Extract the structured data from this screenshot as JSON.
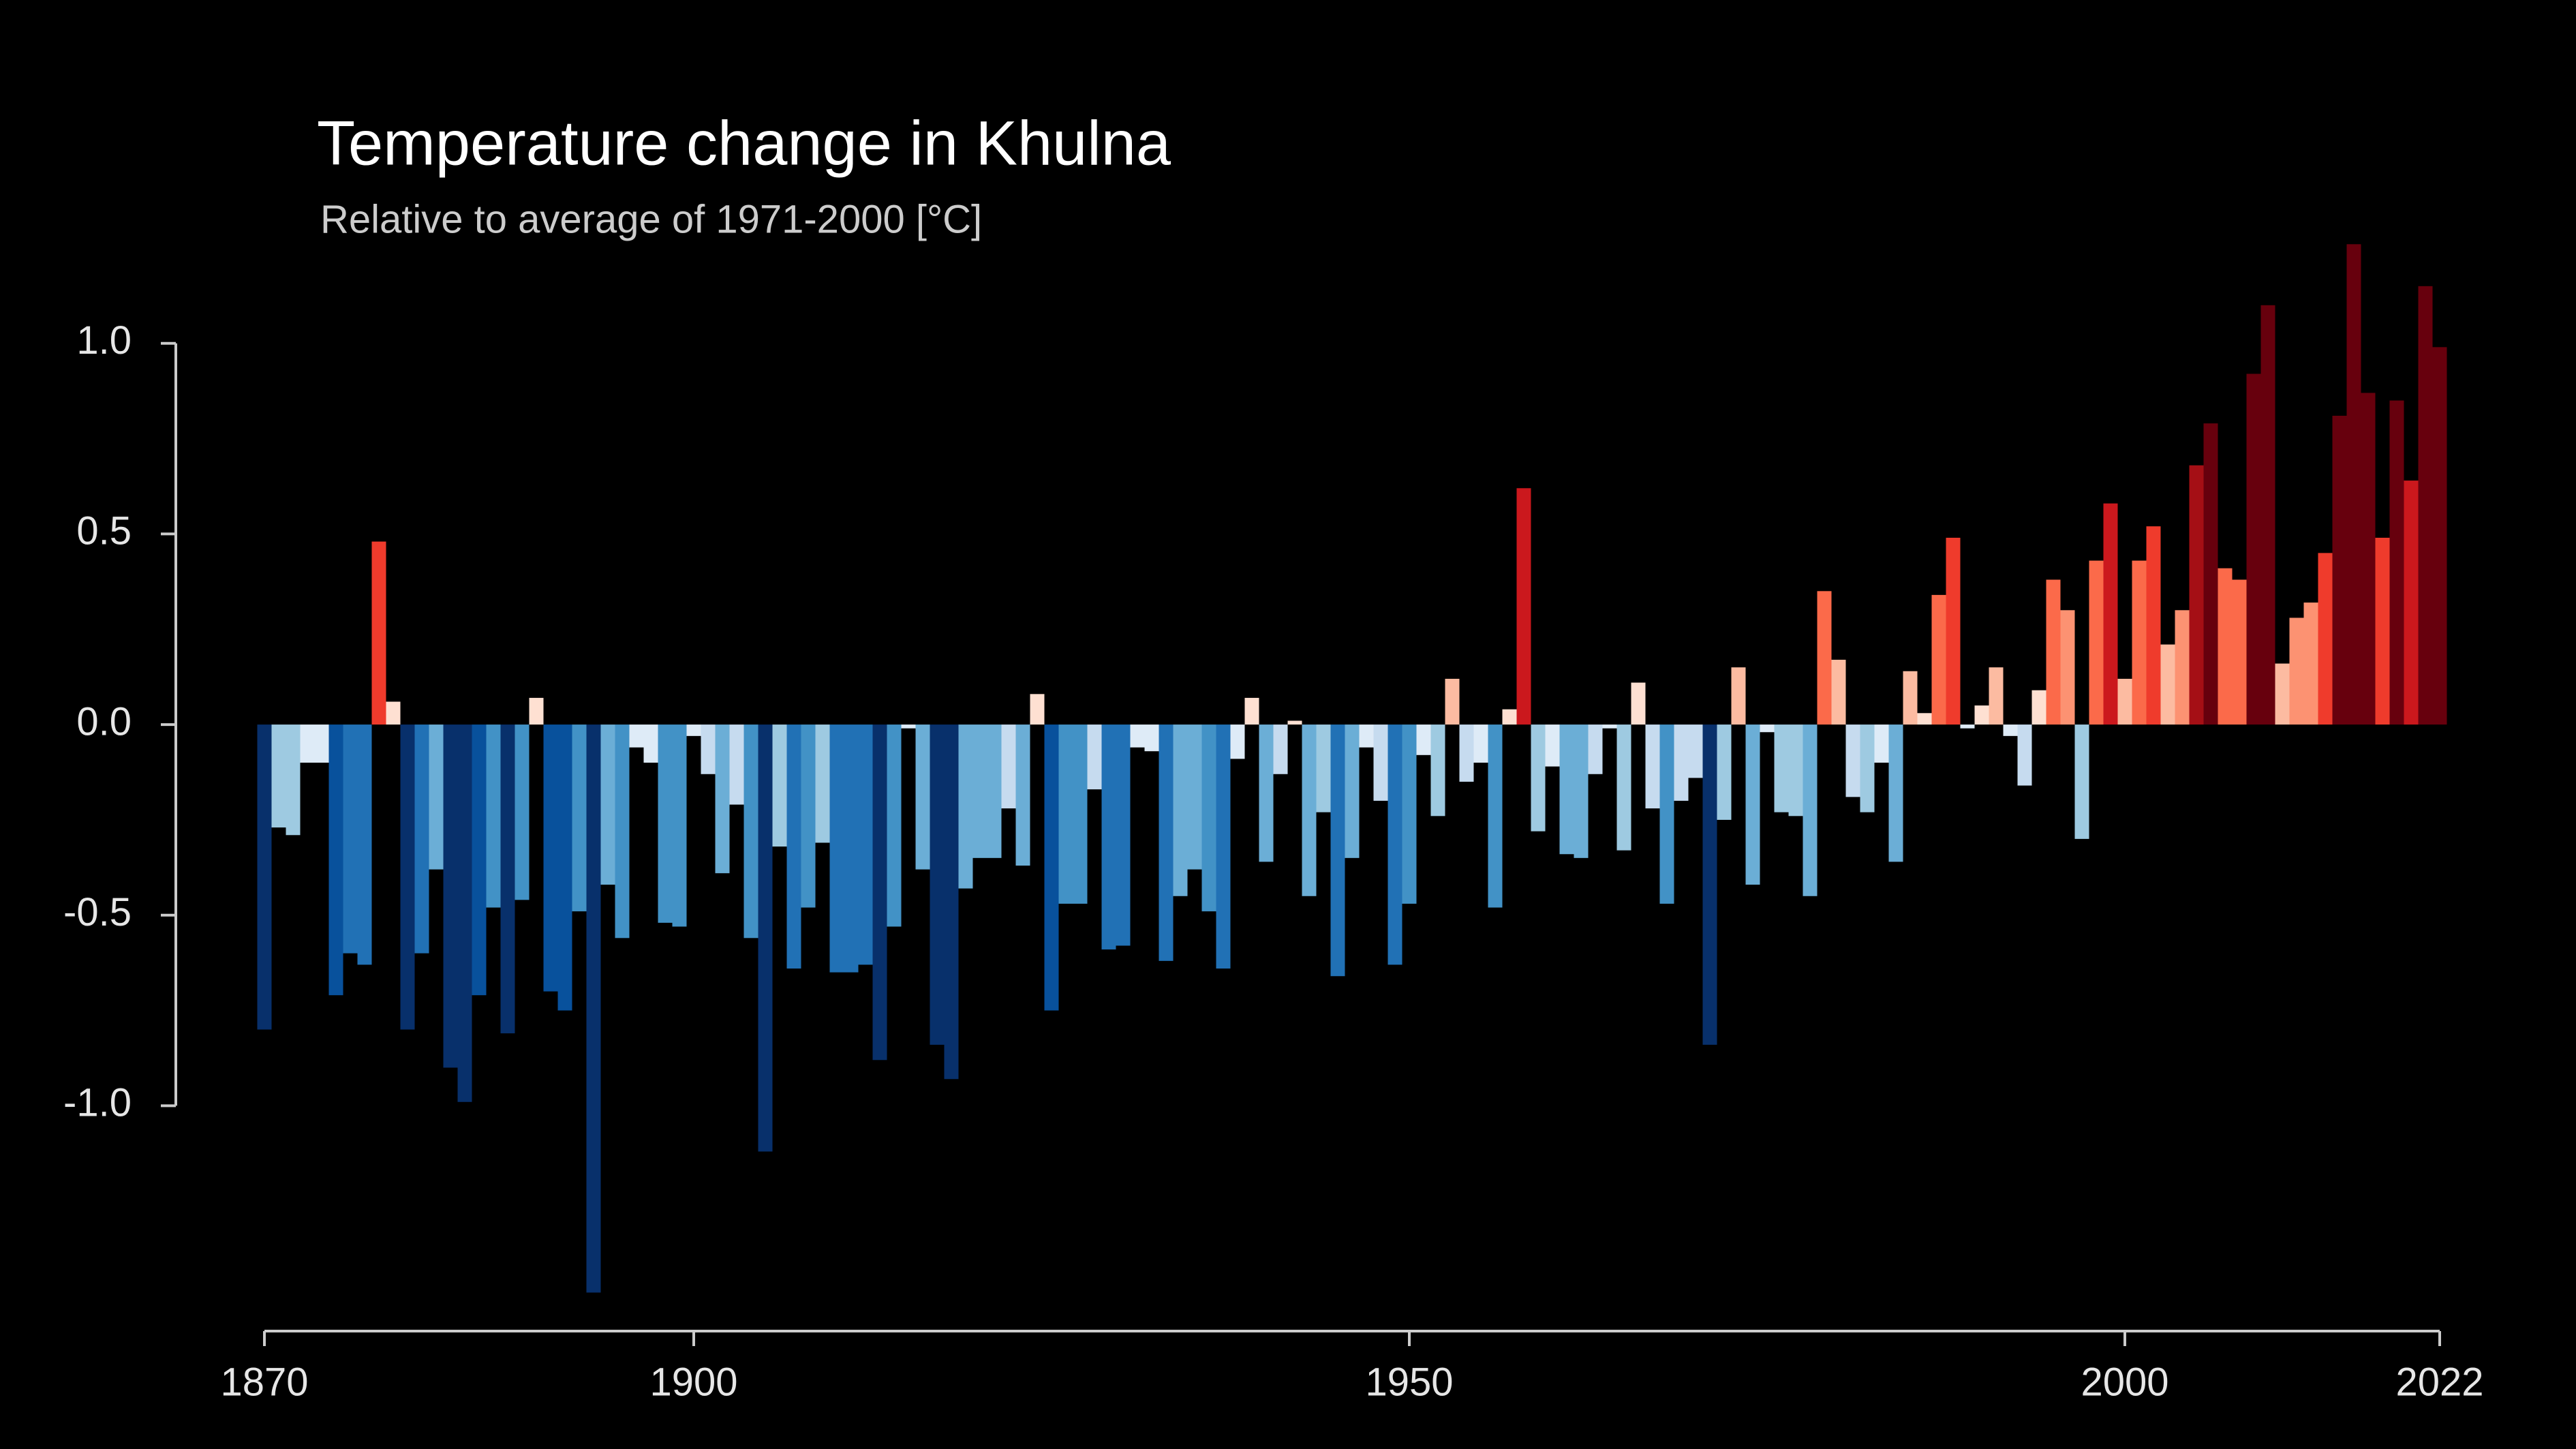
{
  "chart_data": {
    "type": "bar",
    "title": "Temperature change in Khulna",
    "subtitle": "Relative to average of 1971-2000  [°C]",
    "x": [
      1870,
      1871,
      1872,
      1873,
      1874,
      1875,
      1876,
      1877,
      1878,
      1879,
      1880,
      1881,
      1882,
      1883,
      1884,
      1885,
      1886,
      1887,
      1888,
      1889,
      1890,
      1891,
      1892,
      1893,
      1894,
      1895,
      1896,
      1897,
      1898,
      1899,
      1900,
      1901,
      1902,
      1903,
      1904,
      1905,
      1906,
      1907,
      1908,
      1909,
      1910,
      1911,
      1912,
      1913,
      1914,
      1915,
      1916,
      1917,
      1918,
      1919,
      1920,
      1921,
      1922,
      1923,
      1924,
      1925,
      1926,
      1927,
      1928,
      1929,
      1930,
      1931,
      1932,
      1933,
      1934,
      1935,
      1936,
      1937,
      1938,
      1939,
      1940,
      1941,
      1942,
      1943,
      1944,
      1945,
      1946,
      1947,
      1948,
      1949,
      1950,
      1951,
      1952,
      1953,
      1954,
      1955,
      1956,
      1957,
      1958,
      1959,
      1960,
      1961,
      1962,
      1963,
      1964,
      1965,
      1966,
      1967,
      1968,
      1969,
      1970,
      1971,
      1972,
      1973,
      1974,
      1975,
      1976,
      1977,
      1978,
      1979,
      1980,
      1981,
      1982,
      1983,
      1984,
      1985,
      1986,
      1987,
      1988,
      1989,
      1990,
      1991,
      1992,
      1993,
      1994,
      1995,
      1996,
      1997,
      1998,
      1999,
      2000,
      2001,
      2002,
      2003,
      2004,
      2005,
      2006,
      2007,
      2008,
      2009,
      2010,
      2011,
      2012,
      2013,
      2014,
      2015,
      2016,
      2017,
      2018,
      2019,
      2020,
      2021,
      2022
    ],
    "values": [
      -0.8,
      -0.27,
      -0.29,
      -0.1,
      -0.1,
      -0.71,
      -0.6,
      -0.63,
      0.48,
      0.06,
      -0.8,
      -0.6,
      -0.38,
      -0.9,
      -0.99,
      -0.71,
      -0.48,
      -0.81,
      -0.46,
      0.07,
      -0.7,
      -0.75,
      -0.49,
      -1.49,
      -0.42,
      -0.56,
      -0.06,
      -0.1,
      -0.52,
      -0.53,
      -0.03,
      -0.13,
      -0.39,
      -0.21,
      -0.56,
      -1.12,
      -0.32,
      -0.64,
      -0.48,
      -0.31,
      -0.65,
      -0.65,
      -0.63,
      -0.88,
      -0.53,
      -0.01,
      -0.38,
      -0.84,
      -0.93,
      -0.43,
      -0.35,
      -0.35,
      -0.22,
      -0.37,
      0.08,
      -0.75,
      -0.47,
      -0.47,
      -0.17,
      -0.59,
      -0.58,
      -0.06,
      -0.07,
      -0.62,
      -0.45,
      -0.38,
      -0.49,
      -0.64,
      -0.09,
      0.07,
      -0.36,
      -0.13,
      0.01,
      -0.45,
      -0.23,
      -0.66,
      -0.35,
      -0.06,
      -0.2,
      -0.63,
      -0.47,
      -0.08,
      -0.24,
      0.12,
      -0.15,
      -0.1,
      -0.48,
      0.04,
      0.62,
      -0.28,
      -0.11,
      -0.34,
      -0.35,
      -0.13,
      -0.01,
      -0.33,
      0.11,
      -0.22,
      -0.47,
      -0.2,
      -0.14,
      -0.84,
      -0.25,
      0.15,
      -0.42,
      -0.02,
      -0.23,
      -0.24,
      -0.45,
      0.35,
      0.17,
      -0.19,
      -0.23,
      -0.1,
      -0.36,
      0.14,
      0.03,
      0.34,
      0.49,
      -0.01,
      0.05,
      0.15,
      -0.03,
      -0.16,
      0.09,
      0.38,
      0.3,
      -0.3,
      0.43,
      0.58,
      0.12,
      0.43,
      0.52,
      0.21,
      0.3,
      0.68,
      0.79,
      0.41,
      0.38,
      0.92,
      1.1,
      0.16,
      0.28,
      0.32,
      0.45,
      0.81,
      1.26,
      0.87,
      0.49,
      0.85,
      0.64,
      1.15,
      0.99
    ],
    "xlim": [
      1870,
      2022
    ],
    "xticks": [
      1870,
      1900,
      1950,
      2000,
      2022
    ],
    "ylim": [
      -1.6,
      1.4
    ],
    "yticks": [
      {
        "value": 1.0,
        "label": "1.0"
      },
      0.5,
      {
        "value": 0.0,
        "label": "0.0"
      },
      -0.5,
      {
        "value": -1.0,
        "label": "-1.0"
      }
    ],
    "color_scale": {
      "domain": [
        -0.9,
        0.9
      ],
      "colors": [
        "#08306b",
        "#08519c",
        "#2171b5",
        "#4292c6",
        "#6baed6",
        "#9ecae1",
        "#c6dbef",
        "#deebf7",
        "#fee0d2",
        "#fcbba1",
        "#fc9272",
        "#fb6a4a",
        "#ef3b2c",
        "#cb181d",
        "#a50f15",
        "#67000d"
      ]
    },
    "grid": false
  }
}
